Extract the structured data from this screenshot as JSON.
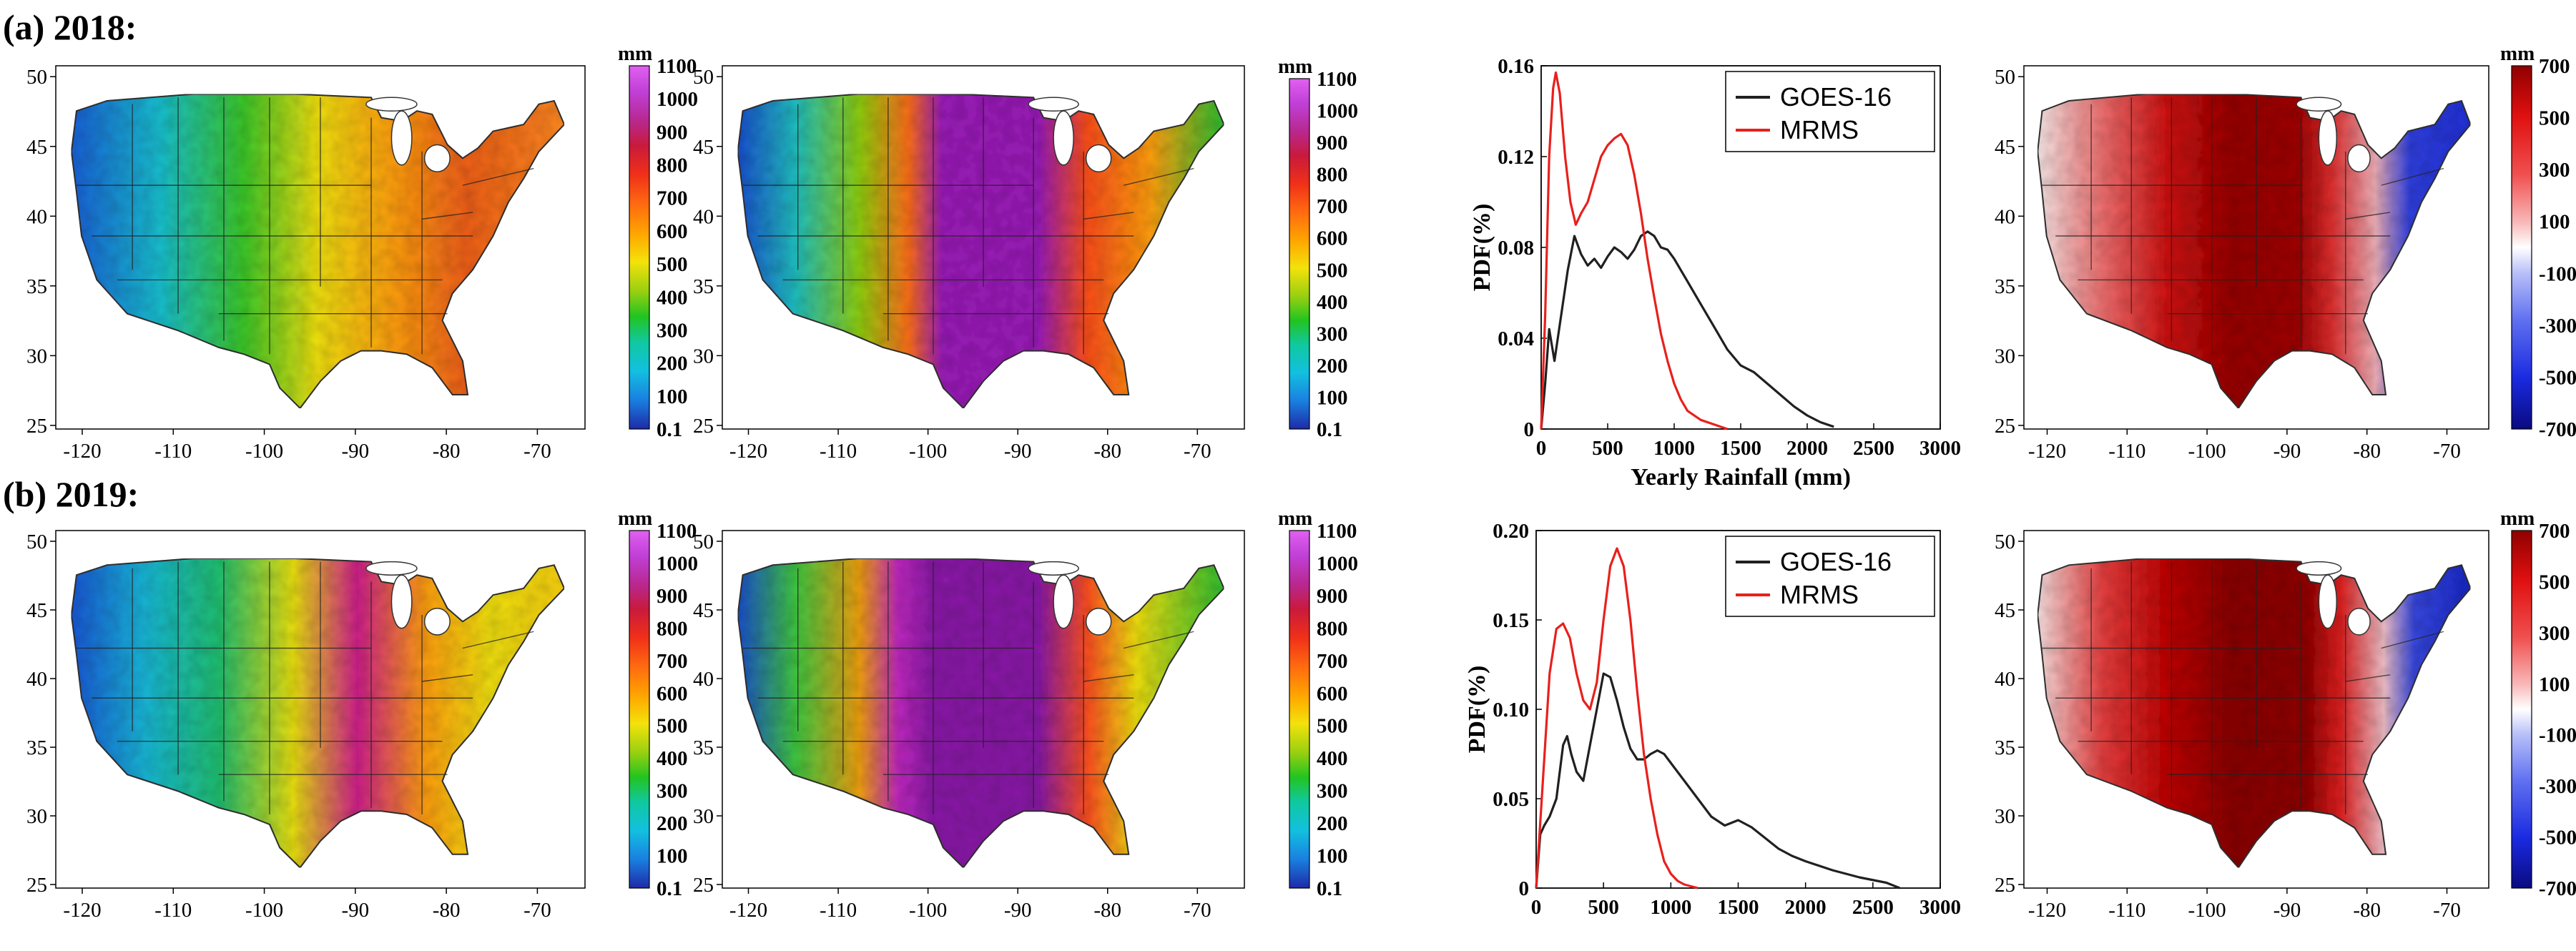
{
  "rows": [
    {
      "label": "(a) 2018:"
    },
    {
      "label": "(b) 2019:"
    }
  ],
  "map_axes": {
    "lon_ticks": [
      "-120",
      "-110",
      "-100",
      "-90",
      "-80",
      "-70"
    ],
    "lat_ticks": [
      "50",
      "45",
      "40",
      "35",
      "30",
      "25"
    ]
  },
  "colorbars": {
    "rainfall": {
      "unit": "mm",
      "labels": [
        "1100",
        "1000",
        "900",
        "800",
        "700",
        "600",
        "500",
        "400",
        "300",
        "200",
        "100",
        "0.1"
      ],
      "colors": [
        "#1e2aa8",
        "#1a7fe0",
        "#12c0e0",
        "#10c8a0",
        "#22c420",
        "#9ad010",
        "#f4e20a",
        "#ffa400",
        "#ff6a10",
        "#f03018",
        "#c81a3c",
        "#b82890",
        "#c040d8",
        "#e060f0"
      ]
    },
    "difference": {
      "unit": "mm",
      "labels": [
        "700",
        "500",
        "300",
        "100",
        "-100",
        "-300",
        "-500",
        "-700"
      ],
      "colors": [
        "#0a0a80",
        "#1a2ae0",
        "#6070f0",
        "#b8c0f8",
        "#ffffff",
        "#f8b8b8",
        "#f05050",
        "#e01010",
        "#900000"
      ]
    }
  },
  "chart_data": [
    {
      "type": "line",
      "panel": "2018 PDF",
      "xlabel": "Yearly Rainfall (mm)",
      "ylabel": "PDF(%)",
      "xlim": [
        0,
        3000
      ],
      "ylim": [
        0,
        0.16
      ],
      "xticks": [
        "0",
        "500",
        "1000",
        "1500",
        "2000",
        "2500",
        "3000"
      ],
      "yticks": [
        "0",
        "0.04",
        "0.08",
        "0.12",
        "0.16"
      ],
      "legend": "top-right",
      "series": [
        {
          "name": "GOES-16",
          "color": "#202020",
          "x": [
            0,
            30,
            60,
            100,
            150,
            200,
            250,
            300,
            350,
            400,
            450,
            500,
            550,
            600,
            650,
            700,
            750,
            800,
            850,
            900,
            950,
            1000,
            1100,
            1200,
            1300,
            1400,
            1500,
            1600,
            1700,
            1800,
            1900,
            2000,
            2100,
            2200
          ],
          "y": [
            0.0,
            0.02,
            0.044,
            0.03,
            0.05,
            0.07,
            0.085,
            0.077,
            0.072,
            0.075,
            0.071,
            0.076,
            0.08,
            0.078,
            0.075,
            0.079,
            0.085,
            0.087,
            0.085,
            0.08,
            0.079,
            0.075,
            0.065,
            0.055,
            0.045,
            0.035,
            0.028,
            0.025,
            0.02,
            0.015,
            0.01,
            0.006,
            0.003,
            0.001
          ]
        },
        {
          "name": "MRMS",
          "color": "#e8201c",
          "x": [
            0,
            30,
            60,
            90,
            110,
            140,
            180,
            220,
            260,
            300,
            350,
            400,
            450,
            500,
            550,
            600,
            650,
            700,
            750,
            800,
            850,
            900,
            950,
            1000,
            1050,
            1100,
            1200,
            1300,
            1400
          ],
          "y": [
            0.0,
            0.05,
            0.12,
            0.15,
            0.157,
            0.148,
            0.12,
            0.1,
            0.09,
            0.095,
            0.1,
            0.11,
            0.12,
            0.125,
            0.128,
            0.13,
            0.125,
            0.112,
            0.095,
            0.075,
            0.058,
            0.042,
            0.03,
            0.02,
            0.013,
            0.008,
            0.004,
            0.002,
            0.0
          ]
        }
      ]
    },
    {
      "type": "line",
      "panel": "2019 PDF",
      "xlabel": "",
      "ylabel": "PDF(%)",
      "xlim": [
        0,
        3000
      ],
      "ylim": [
        0,
        0.2
      ],
      "xticks": [
        "0",
        "500",
        "1000",
        "1500",
        "2000",
        "2500",
        "3000"
      ],
      "yticks": [
        "0",
        "0.05",
        "0.10",
        "0.15",
        "0.20"
      ],
      "legend": "top-right",
      "series": [
        {
          "name": "GOES-16",
          "color": "#202020",
          "x": [
            0,
            30,
            60,
            100,
            150,
            200,
            230,
            260,
            300,
            350,
            400,
            450,
            500,
            550,
            600,
            650,
            700,
            750,
            800,
            850,
            900,
            950,
            1000,
            1100,
            1200,
            1300,
            1400,
            1500,
            1600,
            1700,
            1800,
            1900,
            2000,
            2200,
            2400,
            2600,
            2700
          ],
          "y": [
            0.0,
            0.03,
            0.035,
            0.04,
            0.05,
            0.08,
            0.085,
            0.075,
            0.065,
            0.06,
            0.08,
            0.1,
            0.12,
            0.118,
            0.105,
            0.09,
            0.078,
            0.072,
            0.072,
            0.075,
            0.077,
            0.075,
            0.07,
            0.06,
            0.05,
            0.04,
            0.035,
            0.038,
            0.034,
            0.028,
            0.022,
            0.018,
            0.015,
            0.01,
            0.006,
            0.003,
            0.0
          ]
        },
        {
          "name": "MRMS",
          "color": "#e8201c",
          "x": [
            0,
            50,
            100,
            150,
            200,
            250,
            300,
            350,
            400,
            450,
            500,
            550,
            600,
            650,
            700,
            750,
            800,
            850,
            900,
            950,
            1000,
            1050,
            1100,
            1200
          ],
          "y": [
            0.0,
            0.06,
            0.12,
            0.145,
            0.148,
            0.14,
            0.12,
            0.105,
            0.1,
            0.115,
            0.15,
            0.18,
            0.19,
            0.18,
            0.15,
            0.11,
            0.075,
            0.05,
            0.03,
            0.015,
            0.008,
            0.004,
            0.002,
            0.0
          ]
        }
      ]
    }
  ]
}
